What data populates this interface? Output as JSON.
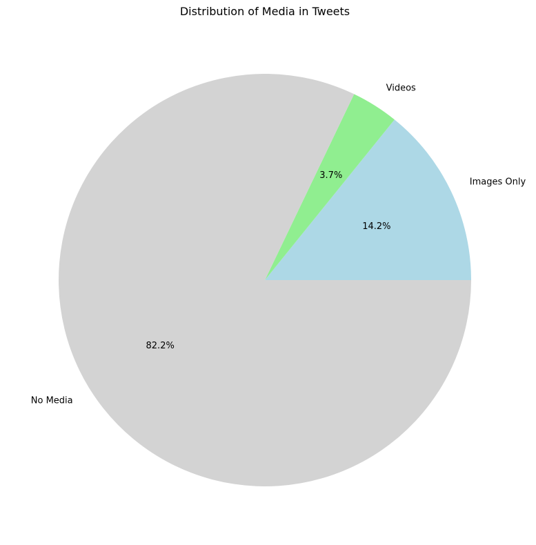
{
  "chart_data": {
    "type": "pie",
    "title": "Distribution of Media in Tweets",
    "start_angle_deg": 0,
    "direction": "counterclockwise",
    "slices": [
      {
        "name": "Images Only",
        "percent": 14.2,
        "label": "14.2%",
        "color": "#add8e6"
      },
      {
        "name": "Videos",
        "percent": 3.7,
        "label": "3.7%",
        "color": "#90ee90"
      },
      {
        "name": "No Media",
        "percent": 82.2,
        "label": "82.2%",
        "color": "#d3d3d3"
      }
    ]
  }
}
